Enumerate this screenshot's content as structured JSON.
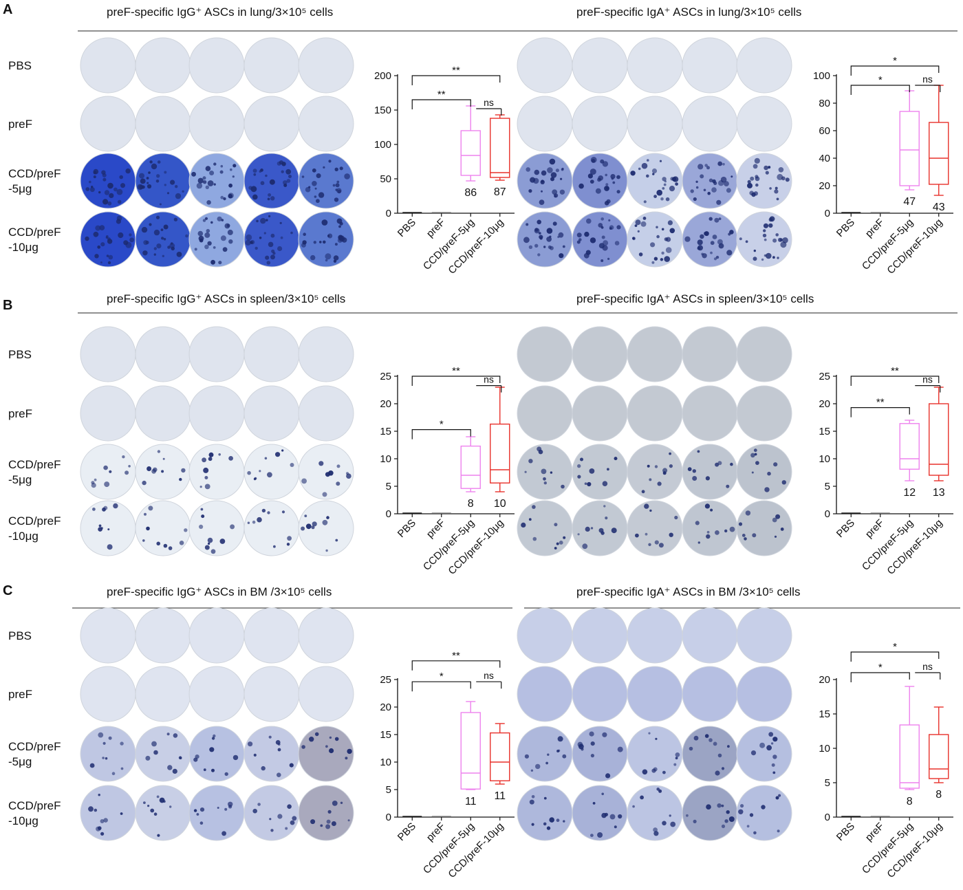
{
  "figure": {
    "sections": [
      {
        "letter": "A",
        "panels": [
          {
            "title": "preF-specific IgG⁺ ASCs in lung/3×10⁵ cells",
            "well_palette": [
              "#2a49c8",
              "#3456c8",
              "#8fa8e0",
              "#3a58c9",
              "#5a79cf"
            ],
            "dark_wells": false,
            "chart_data": {
              "type": "box",
              "categories": [
                "PBS",
                "preF",
                "CCD/preF-5μg",
                "CCD/preF-10μg"
              ],
              "ylim": [
                0,
                200
              ],
              "yticks": [
                0,
                50,
                100,
                150,
                200
              ],
              "series": [
                {
                  "min": 0,
                  "q1": 0,
                  "median": 0,
                  "q3": 0,
                  "max": 0,
                  "color": "#222222"
                },
                {
                  "min": 0,
                  "q1": 0,
                  "median": 0,
                  "q3": 0,
                  "max": 0,
                  "color": "#888888"
                },
                {
                  "min": 47,
                  "q1": 55,
                  "median": 84,
                  "q3": 120,
                  "max": 156,
                  "color": "#ee82ee"
                },
                {
                  "min": 48,
                  "q1": 52,
                  "median": 59,
                  "q3": 138,
                  "max": 143,
                  "color": "#e8302a"
                }
              ],
              "n_labels": [
                "",
                "",
                "86",
                "87"
              ],
              "significance": [
                {
                  "from": 0,
                  "to": 3,
                  "label": "**",
                  "y": 200
                },
                {
                  "from": 0,
                  "to": 2,
                  "label": "**",
                  "y": 165
                },
                {
                  "from": 2,
                  "to": 3,
                  "label": "ns",
                  "y": 152
                }
              ]
            }
          },
          {
            "title": "preF-specific IgA⁺ ASCs in lung/3×10⁵ cells",
            "well_palette": [
              "#8b9cd4",
              "#7f8fd0",
              "#c5cfe8",
              "#9aa7d8",
              "#c8d0e8"
            ],
            "dark_wells": false,
            "chart_data": {
              "type": "box",
              "categories": [
                "PBS",
                "preF",
                "CCD/preF-5μg",
                "CCD/preF-10μg"
              ],
              "ylim": [
                0,
                100
              ],
              "yticks": [
                0,
                20,
                40,
                60,
                80,
                100
              ],
              "series": [
                {
                  "min": 0,
                  "q1": 0,
                  "median": 0,
                  "q3": 0,
                  "max": 0,
                  "color": "#222222"
                },
                {
                  "min": 0,
                  "q1": 0,
                  "median": 0,
                  "q3": 0,
                  "max": 0,
                  "color": "#888888"
                },
                {
                  "min": 17,
                  "q1": 20,
                  "median": 46,
                  "q3": 74,
                  "max": 89,
                  "color": "#ee82ee"
                },
                {
                  "min": 13,
                  "q1": 21,
                  "median": 40,
                  "q3": 66,
                  "max": 93,
                  "color": "#e8302a"
                }
              ],
              "n_labels": [
                "",
                "",
                "47",
                "43"
              ],
              "significance": [
                {
                  "from": 0,
                  "to": 3,
                  "label": "*",
                  "y": 107
                },
                {
                  "from": 0,
                  "to": 2,
                  "label": "*",
                  "y": 93
                },
                {
                  "from": 2,
                  "to": 3,
                  "label": "ns",
                  "y": 93
                }
              ]
            }
          }
        ]
      },
      {
        "letter": "B",
        "panels": [
          {
            "title": "preF-specific IgG⁺ ASCs in spleen/3×10⁵ cells",
            "well_palette": [
              "#e2e8f0",
              "#e8edf3",
              "#eef1f5",
              "#eef1f5",
              "#eef1f5"
            ],
            "dark_wells": false,
            "chart_data": {
              "type": "box",
              "categories": [
                "PBS",
                "preF",
                "CCD/preF-5μg",
                "CCD/preF-10μg"
              ],
              "ylim": [
                0,
                25
              ],
              "yticks": [
                0,
                5,
                10,
                15,
                20,
                25
              ],
              "series": [
                {
                  "min": 0,
                  "q1": 0,
                  "median": 0,
                  "q3": 0,
                  "max": 0,
                  "color": "#222222"
                },
                {
                  "min": 0,
                  "q1": 0,
                  "median": 0,
                  "q3": 0,
                  "max": 0,
                  "color": "#888888"
                },
                {
                  "min": 4,
                  "q1": 4.6,
                  "median": 7,
                  "q3": 12.3,
                  "max": 14,
                  "color": "#ee82ee"
                },
                {
                  "min": 4,
                  "q1": 5.6,
                  "median": 8,
                  "q3": 16.3,
                  "max": 23,
                  "color": "#e8302a"
                }
              ],
              "n_labels": [
                "",
                "",
                "8",
                "10"
              ],
              "significance": [
                {
                  "from": 0,
                  "to": 3,
                  "label": "**",
                  "y": 25
                },
                {
                  "from": 0,
                  "to": 2,
                  "label": "*",
                  "y": 15.3
                },
                {
                  "from": 2,
                  "to": 3,
                  "label": "ns",
                  "y": 23.3
                }
              ]
            }
          },
          {
            "title": "preF-specific IgA⁺ ASCs in spleen/3×10⁵ cells",
            "well_palette": [
              "#c2c9d3",
              "#c2c9d3",
              "#c4cad4",
              "#bfc6d1",
              "#bcc3ce"
            ],
            "dark_wells": true,
            "chart_data": {
              "type": "box",
              "categories": [
                "PBS",
                "preF",
                "CCD/preF-5μg",
                "CCD/preF-10μg"
              ],
              "ylim": [
                0,
                25
              ],
              "yticks": [
                0,
                5,
                10,
                15,
                20,
                25
              ],
              "series": [
                {
                  "min": 0,
                  "q1": 0,
                  "median": 0,
                  "q3": 0,
                  "max": 0,
                  "color": "#222222"
                },
                {
                  "min": 0,
                  "q1": 0,
                  "median": 0,
                  "q3": 0,
                  "max": 0,
                  "color": "#888888"
                },
                {
                  "min": 6,
                  "q1": 8.1,
                  "median": 10,
                  "q3": 16.4,
                  "max": 17,
                  "color": "#ee82ee"
                },
                {
                  "min": 6,
                  "q1": 7,
                  "median": 9,
                  "q3": 20,
                  "max": 23,
                  "color": "#e8302a"
                }
              ],
              "n_labels": [
                "",
                "",
                "12",
                "13"
              ],
              "significance": [
                {
                  "from": 0,
                  "to": 3,
                  "label": "**",
                  "y": 25
                },
                {
                  "from": 0,
                  "to": 2,
                  "label": "**",
                  "y": 19.3
                },
                {
                  "from": 2,
                  "to": 3,
                  "label": "ns",
                  "y": 23.3
                }
              ]
            }
          }
        ]
      },
      {
        "letter": "C",
        "panels": [
          {
            "title": "preF-specific IgG⁺ ASCs in BM /3×10⁵ cells",
            "well_palette": [
              "#bfc7e3",
              "#c8cfe6",
              "#b7c1e2",
              "#c3cae4",
              "#a9a9bd"
            ],
            "dark_wells": false,
            "chart_data": {
              "type": "box",
              "categories": [
                "PBS",
                "preF",
                "CCD/preF-5μg",
                "CCD/preF-10μg"
              ],
              "ylim": [
                0,
                25
              ],
              "yticks": [
                0,
                5,
                10,
                15,
                20,
                25
              ],
              "series": [
                {
                  "min": 0,
                  "q1": 0,
                  "median": 0,
                  "q3": 0,
                  "max": 0,
                  "color": "#222222"
                },
                {
                  "min": 0,
                  "q1": 0,
                  "median": 0,
                  "q3": 0,
                  "max": 0,
                  "color": "#888888"
                },
                {
                  "min": 5,
                  "q1": 5.1,
                  "median": 8,
                  "q3": 19,
                  "max": 21,
                  "color": "#ee82ee"
                },
                {
                  "min": 6,
                  "q1": 6.6,
                  "median": 10,
                  "q3": 15.3,
                  "max": 17,
                  "color": "#e8302a"
                }
              ],
              "n_labels": [
                "",
                "",
                "11",
                "11"
              ],
              "significance": [
                {
                  "from": 0,
                  "to": 3,
                  "label": "**",
                  "y": 28.4
                },
                {
                  "from": 0,
                  "to": 2,
                  "label": "*",
                  "y": 24.6
                },
                {
                  "from": 2,
                  "to": 3,
                  "label": "ns",
                  "y": 24.6
                }
              ]
            }
          },
          {
            "title": "preF-specific IgA⁺ ASCs in BM /3×10⁵ cells",
            "well_palette": [
              "#aeb8dc",
              "#a8b2d8",
              "#bcc5e3",
              "#9ba4c4",
              "#b5bfe0"
            ],
            "dark_wells": false,
            "chart_data": {
              "type": "box",
              "categories": [
                "PBS",
                "preF",
                "CCD/preF-5μg",
                "CCD/preF-10μg"
              ],
              "ylim": [
                0,
                20
              ],
              "yticks": [
                0,
                5,
                10,
                15,
                20
              ],
              "series": [
                {
                  "min": 0,
                  "q1": 0,
                  "median": 0,
                  "q3": 0,
                  "max": 0,
                  "color": "#222222"
                },
                {
                  "min": 0,
                  "q1": 0,
                  "median": 0,
                  "q3": 0,
                  "max": 0,
                  "color": "#888888"
                },
                {
                  "min": 4,
                  "q1": 4.2,
                  "median": 5,
                  "q3": 13.4,
                  "max": 19,
                  "color": "#ee82ee"
                },
                {
                  "min": 5,
                  "q1": 5.6,
                  "median": 7,
                  "q3": 12,
                  "max": 16,
                  "color": "#e8302a"
                }
              ],
              "n_labels": [
                "",
                "",
                "8",
                "8"
              ],
              "significance": [
                {
                  "from": 0,
                  "to": 3,
                  "label": "*",
                  "y": 24
                },
                {
                  "from": 0,
                  "to": 2,
                  "label": "*",
                  "y": 21
                },
                {
                  "from": 2,
                  "to": 3,
                  "label": "ns",
                  "y": 21
                }
              ]
            }
          }
        ]
      }
    ],
    "row_labels": [
      [
        "PBS"
      ],
      [
        "preF"
      ],
      [
        "CCD/preF",
        "-5μg"
      ],
      [
        "CCD/preF",
        "-10μg"
      ]
    ]
  }
}
